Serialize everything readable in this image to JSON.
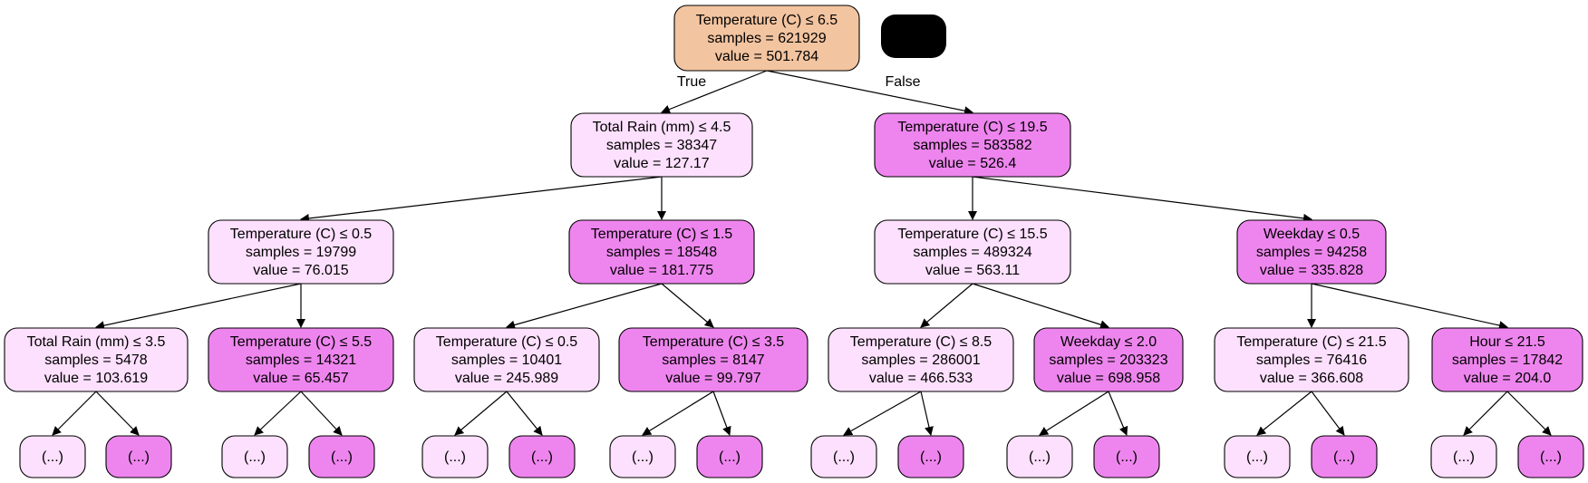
{
  "colors": {
    "root": "#f3c4a0",
    "light": "#fde0fd",
    "dark": "#ee85ee",
    "legend": "#000000",
    "stroke": "#000000"
  },
  "nodes": [
    {
      "id": "n0",
      "lines": [
        "Temperature (C) ≤ 6.5",
        "samples = 621929",
        "value = 501.784"
      ],
      "fill": "root"
    },
    {
      "id": "n1",
      "lines": [
        "Total Rain (mm) ≤ 4.5",
        "samples = 38347",
        "value = 127.17"
      ],
      "fill": "light"
    },
    {
      "id": "n2",
      "lines": [
        "Temperature (C) ≤ 19.5",
        "samples = 583582",
        "value = 526.4"
      ],
      "fill": "dark"
    },
    {
      "id": "n3",
      "lines": [
        "Temperature (C) ≤ 0.5",
        "samples = 19799",
        "value = 76.015"
      ],
      "fill": "light"
    },
    {
      "id": "n4",
      "lines": [
        "Temperature (C) ≤ 1.5",
        "samples = 18548",
        "value = 181.775"
      ],
      "fill": "dark"
    },
    {
      "id": "n5",
      "lines": [
        "Temperature (C) ≤ 15.5",
        "samples = 489324",
        "value = 563.11"
      ],
      "fill": "light"
    },
    {
      "id": "n6",
      "lines": [
        "Weekday ≤ 0.5",
        "samples = 94258",
        "value = 335.828"
      ],
      "fill": "dark"
    },
    {
      "id": "n7",
      "lines": [
        "Total Rain (mm) ≤ 3.5",
        "samples = 5478",
        "value = 103.619"
      ],
      "fill": "light"
    },
    {
      "id": "n8",
      "lines": [
        "Temperature (C) ≤ 5.5",
        "samples = 14321",
        "value = 65.457"
      ],
      "fill": "dark"
    },
    {
      "id": "n9",
      "lines": [
        "Temperature (C) ≤ 0.5",
        "samples = 10401",
        "value = 245.989"
      ],
      "fill": "light"
    },
    {
      "id": "n10",
      "lines": [
        "Temperature (C) ≤ 3.5",
        "samples = 8147",
        "value = 99.797"
      ],
      "fill": "dark"
    },
    {
      "id": "n11",
      "lines": [
        "Temperature (C) ≤ 8.5",
        "samples = 286001",
        "value = 466.533"
      ],
      "fill": "light"
    },
    {
      "id": "n12",
      "lines": [
        "Weekday ≤ 2.0",
        "samples = 203323",
        "value = 698.958"
      ],
      "fill": "dark"
    },
    {
      "id": "n13",
      "lines": [
        "Temperature (C) ≤ 21.5",
        "samples = 76416",
        "value = 366.608"
      ],
      "fill": "light"
    },
    {
      "id": "n14",
      "lines": [
        "Hour ≤ 21.5",
        "samples = 17842",
        "value = 204.0"
      ],
      "fill": "dark"
    },
    {
      "id": "t1",
      "lines": [
        "(...)"
      ],
      "fill": "light"
    },
    {
      "id": "t2",
      "lines": [
        "(...)"
      ],
      "fill": "dark"
    },
    {
      "id": "t3",
      "lines": [
        "(...)"
      ],
      "fill": "light"
    },
    {
      "id": "t4",
      "lines": [
        "(...)"
      ],
      "fill": "dark"
    },
    {
      "id": "t5",
      "lines": [
        "(...)"
      ],
      "fill": "light"
    },
    {
      "id": "t6",
      "lines": [
        "(...)"
      ],
      "fill": "dark"
    },
    {
      "id": "t7",
      "lines": [
        "(...)"
      ],
      "fill": "light"
    },
    {
      "id": "t8",
      "lines": [
        "(...)"
      ],
      "fill": "dark"
    },
    {
      "id": "t9",
      "lines": [
        "(...)"
      ],
      "fill": "light"
    },
    {
      "id": "t10",
      "lines": [
        "(...)"
      ],
      "fill": "dark"
    },
    {
      "id": "t11",
      "lines": [
        "(...)"
      ],
      "fill": "light"
    },
    {
      "id": "t12",
      "lines": [
        "(...)"
      ],
      "fill": "dark"
    },
    {
      "id": "t13",
      "lines": [
        "(...)"
      ],
      "fill": "light"
    },
    {
      "id": "t14",
      "lines": [
        "(...)"
      ],
      "fill": "dark"
    },
    {
      "id": "t15",
      "lines": [
        "(...)"
      ],
      "fill": "light"
    },
    {
      "id": "t16",
      "lines": [
        "(...)"
      ],
      "fill": "dark"
    }
  ],
  "edges": [
    {
      "from": "n0",
      "to": "n1",
      "label": "True"
    },
    {
      "from": "n0",
      "to": "n2",
      "label": "False"
    },
    {
      "from": "n1",
      "to": "n3"
    },
    {
      "from": "n1",
      "to": "n4"
    },
    {
      "from": "n2",
      "to": "n5"
    },
    {
      "from": "n2",
      "to": "n6"
    },
    {
      "from": "n3",
      "to": "n7"
    },
    {
      "from": "n3",
      "to": "n8"
    },
    {
      "from": "n4",
      "to": "n9"
    },
    {
      "from": "n4",
      "to": "n10"
    },
    {
      "from": "n5",
      "to": "n11"
    },
    {
      "from": "n5",
      "to": "n12"
    },
    {
      "from": "n6",
      "to": "n13"
    },
    {
      "from": "n6",
      "to": "n14"
    },
    {
      "from": "n7",
      "to": "t1"
    },
    {
      "from": "n7",
      "to": "t2"
    },
    {
      "from": "n8",
      "to": "t3"
    },
    {
      "from": "n8",
      "to": "t4"
    },
    {
      "from": "n9",
      "to": "t5"
    },
    {
      "from": "n9",
      "to": "t6"
    },
    {
      "from": "n10",
      "to": "t7"
    },
    {
      "from": "n10",
      "to": "t8"
    },
    {
      "from": "n11",
      "to": "t9"
    },
    {
      "from": "n11",
      "to": "t10"
    },
    {
      "from": "n12",
      "to": "t11"
    },
    {
      "from": "n12",
      "to": "t12"
    },
    {
      "from": "n13",
      "to": "t13"
    },
    {
      "from": "n13",
      "to": "t14"
    },
    {
      "from": "n14",
      "to": "t15"
    },
    {
      "from": "n14",
      "to": "t16"
    }
  ]
}
